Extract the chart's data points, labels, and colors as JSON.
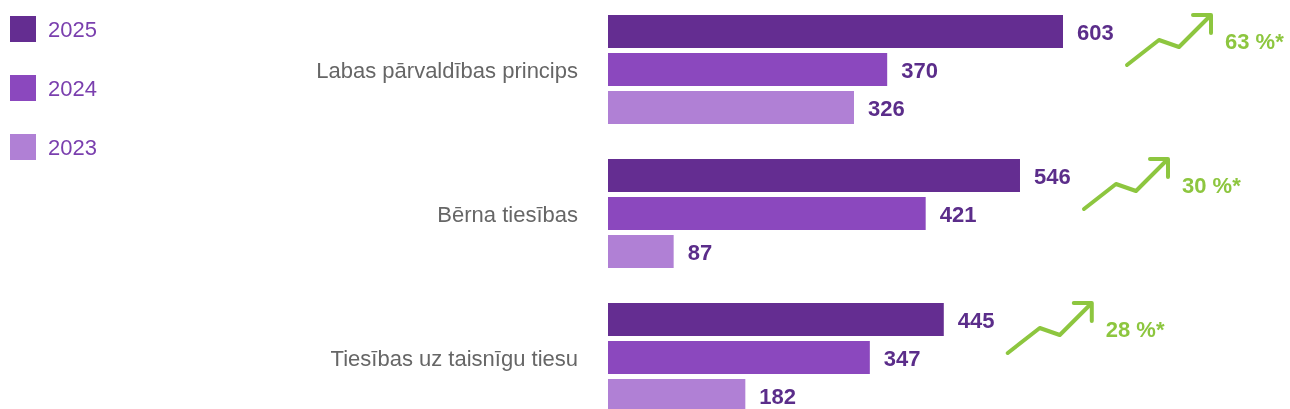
{
  "chart_data": {
    "type": "bar",
    "orientation": "horizontal",
    "categories": [
      "Labas pārvaldības princips",
      "Bērna tiesības",
      "Tiesības uz taisnīgu tiesu"
    ],
    "series": [
      {
        "name": "2025",
        "color": "#642d91",
        "values": [
          603,
          546,
          445
        ]
      },
      {
        "name": "2024",
        "color": "#8b48be",
        "values": [
          370,
          421,
          347
        ]
      },
      {
        "name": "2023",
        "color": "#b080d5",
        "values": [
          326,
          87,
          182
        ]
      }
    ],
    "data_labels": true,
    "legend": "top left",
    "annotations": [
      "63 %*",
      "30 %*",
      "28 %*"
    ]
  }
}
